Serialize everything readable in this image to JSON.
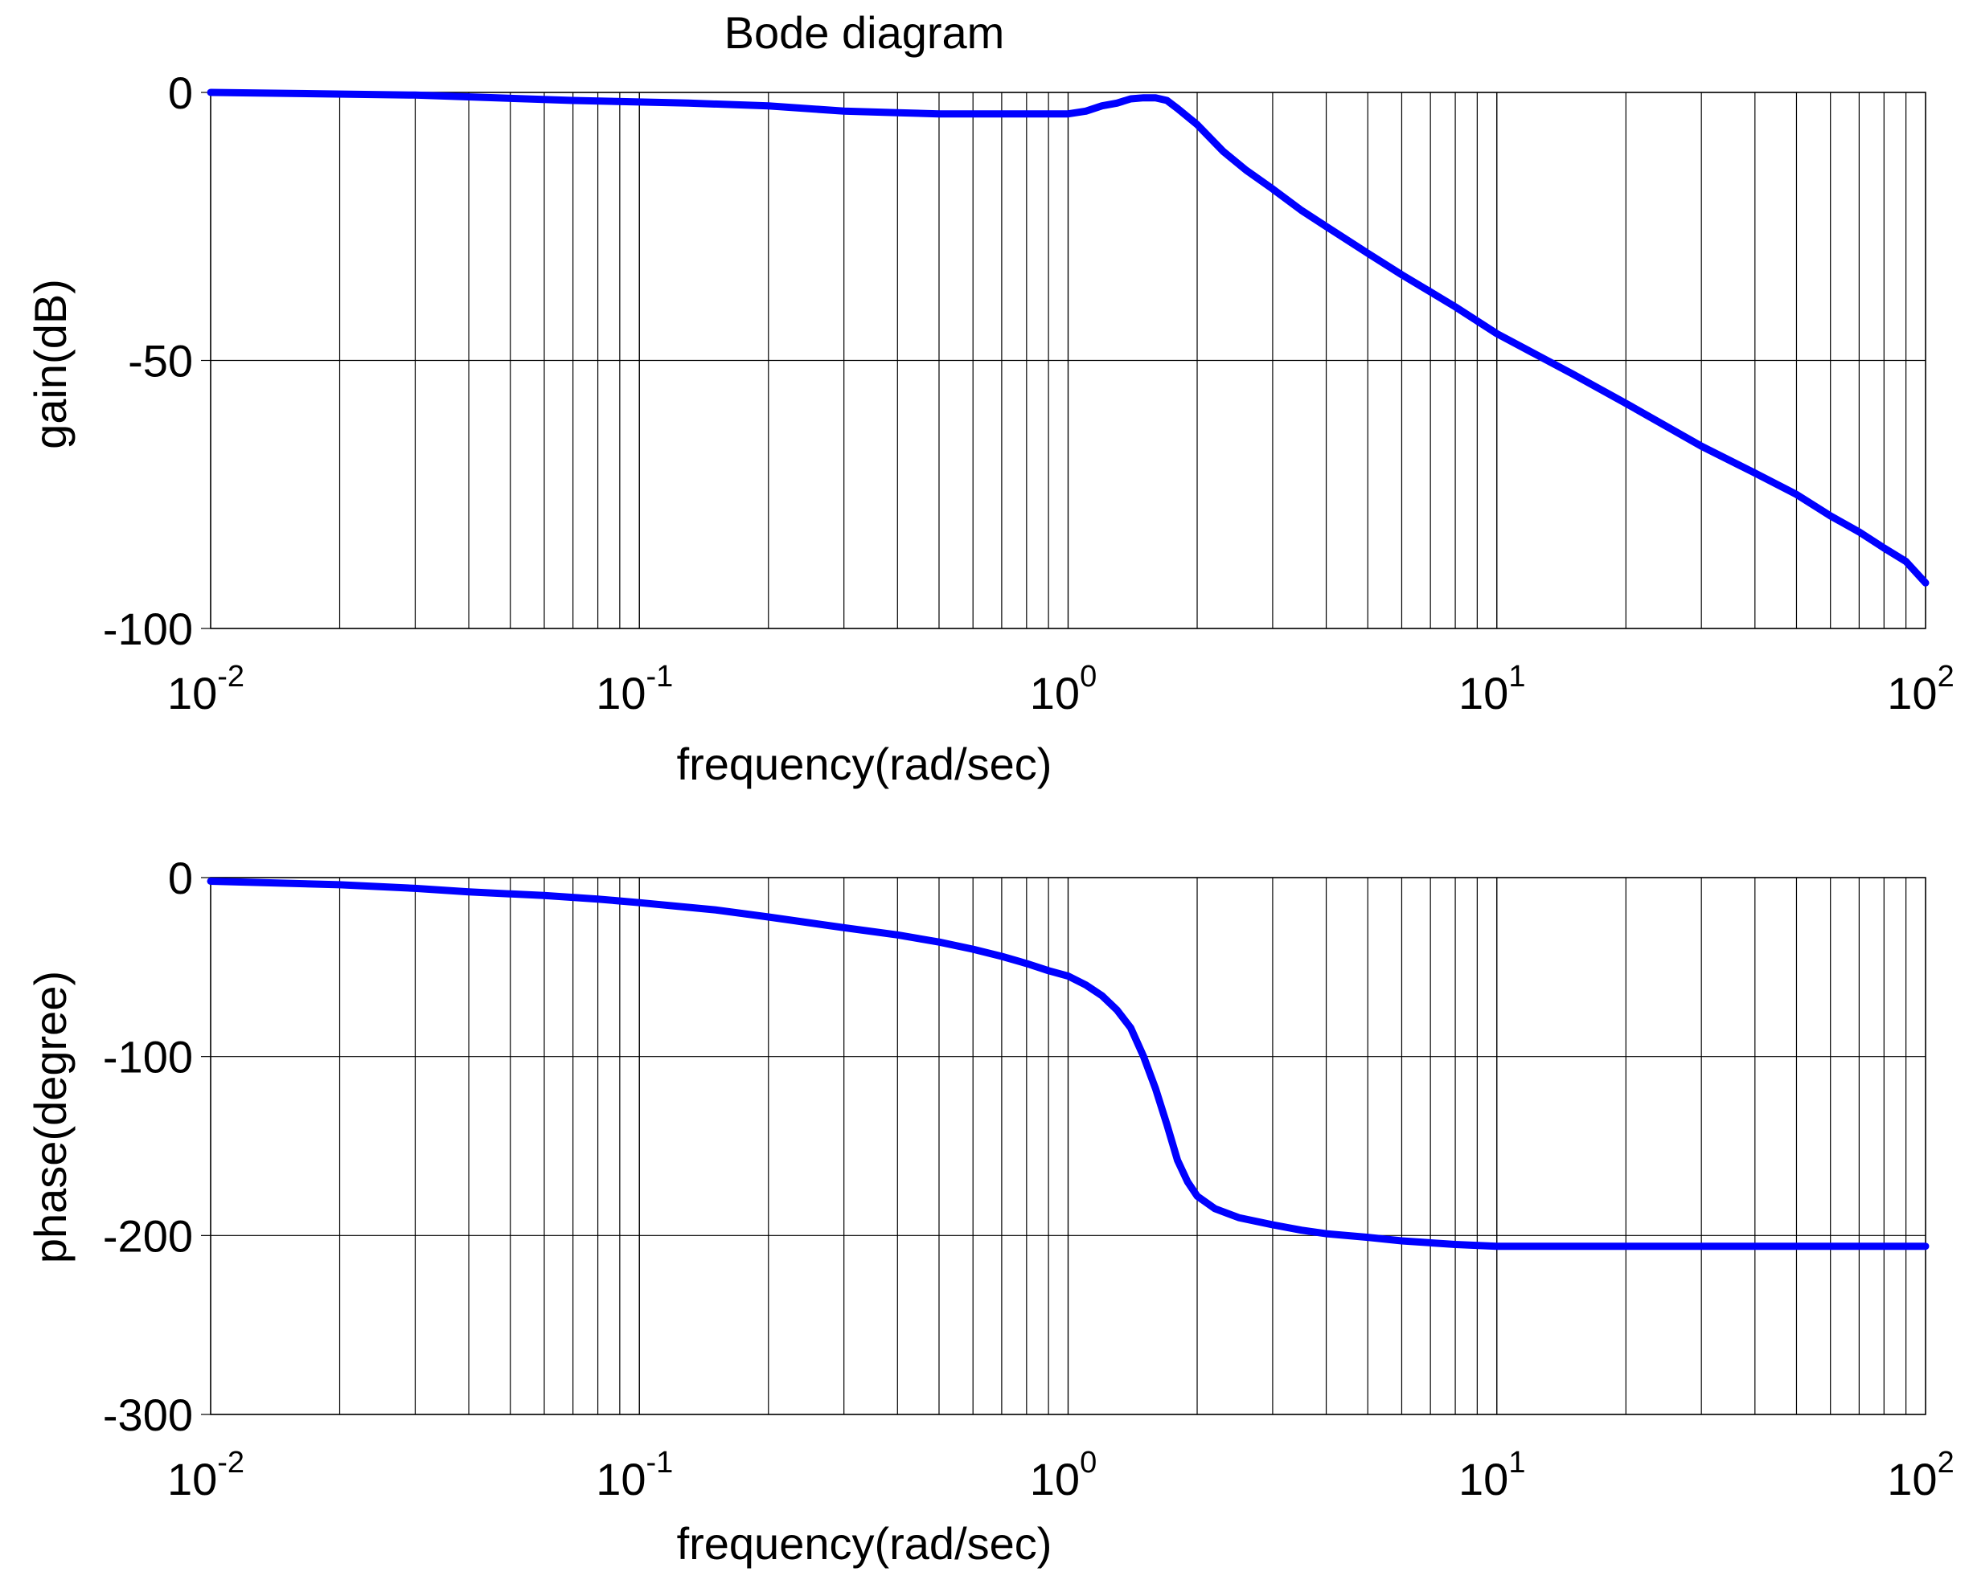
{
  "chart_data": [
    {
      "type": "line",
      "title": "Bode diagram",
      "xlabel": "frequency(rad/sec)",
      "ylabel": "gain(dB)",
      "xscale": "log",
      "xlim": [
        0.01,
        100
      ],
      "ylim": [
        -100,
        0
      ],
      "x_ticks": [
        {
          "base": "10",
          "exp": "-2"
        },
        {
          "base": "10",
          "exp": "-1"
        },
        {
          "base": "10",
          "exp": "0"
        },
        {
          "base": "10",
          "exp": "1"
        },
        {
          "base": "10",
          "exp": "2"
        }
      ],
      "y_ticks": [
        "0",
        "-50",
        "-100"
      ],
      "y_tick_values": [
        0,
        -50,
        -100
      ],
      "grid": true,
      "color": "#0000ff",
      "series": [
        {
          "x": [
            0.01,
            0.03,
            0.07,
            0.13,
            0.2,
            0.3,
            0.4,
            0.5,
            0.7,
            0.9,
            1.0,
            1.1,
            1.2,
            1.3,
            1.4,
            1.5,
            1.6,
            1.7,
            1.8,
            2.0,
            2.3,
            2.6,
            3.0,
            3.5,
            4.0,
            5.0,
            6.0,
            8.0,
            10.0,
            15.0,
            20.0,
            30.0,
            40.0,
            50.0,
            60.0,
            70.0,
            80.0,
            90.0,
            100.0
          ],
          "y": [
            0,
            -0.5,
            -1.5,
            -2,
            -2.5,
            -3.5,
            -3.8,
            -4,
            -4,
            -4,
            -4,
            -3.5,
            -2.5,
            -2,
            -1.2,
            -1,
            -1,
            -1.5,
            -3,
            -6,
            -11,
            -14.5,
            -18,
            -22,
            -25,
            -30,
            -34,
            -40,
            -45,
            -52.5,
            -58,
            -66,
            -71,
            -75,
            -79,
            -82,
            -85,
            -87.5,
            -91.5
          ]
        }
      ]
    },
    {
      "type": "line",
      "xlabel": "frequency(rad/sec)",
      "ylabel": "phase(degree)",
      "xscale": "log",
      "xlim": [
        0.01,
        100
      ],
      "ylim": [
        -300,
        0
      ],
      "x_ticks": [
        {
          "base": "10",
          "exp": "-2"
        },
        {
          "base": "10",
          "exp": "-1"
        },
        {
          "base": "10",
          "exp": "0"
        },
        {
          "base": "10",
          "exp": "1"
        },
        {
          "base": "10",
          "exp": "2"
        }
      ],
      "y_ticks": [
        "0",
        "-100",
        "-200",
        "-300"
      ],
      "y_tick_values": [
        0,
        -100,
        -200,
        -300
      ],
      "grid": true,
      "color": "#0000ff",
      "series": [
        {
          "x": [
            0.01,
            0.02,
            0.03,
            0.04,
            0.06,
            0.08,
            0.1,
            0.15,
            0.2,
            0.3,
            0.4,
            0.5,
            0.6,
            0.7,
            0.8,
            0.9,
            1.0,
            1.1,
            1.2,
            1.3,
            1.4,
            1.5,
            1.6,
            1.7,
            1.8,
            1.9,
            2.0,
            2.2,
            2.5,
            3.0,
            3.5,
            4.0,
            5.0,
            6.0,
            8.0,
            10.0,
            20.0,
            50.0,
            100.0
          ],
          "y": [
            -2,
            -4,
            -6,
            -8,
            -10,
            -12,
            -14,
            -18,
            -22,
            -28,
            -32,
            -36,
            -40,
            -44,
            -48,
            -52,
            -55,
            -60,
            -66,
            -74,
            -84,
            -100,
            -118,
            -138,
            -158,
            -170,
            -178,
            -185,
            -190,
            -194,
            -197,
            -199,
            -201,
            -203,
            -205,
            -206,
            -206,
            -206,
            -206
          ]
        }
      ]
    }
  ]
}
